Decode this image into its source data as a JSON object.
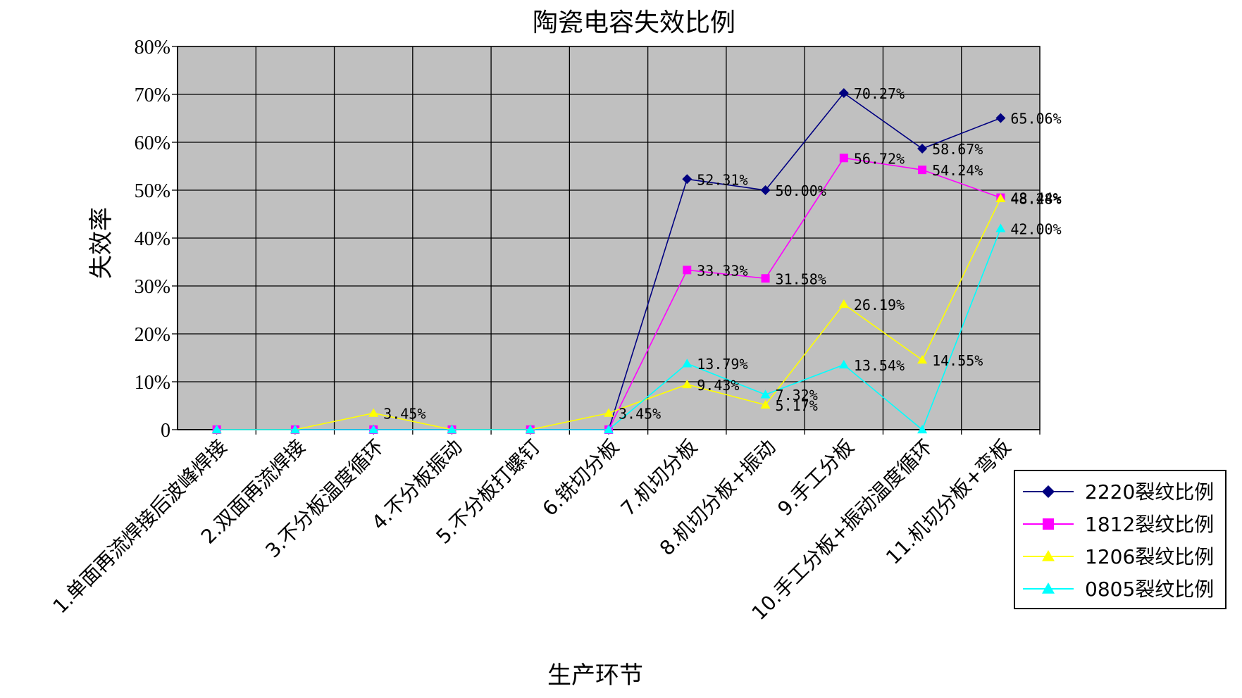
{
  "chart_data": {
    "type": "line",
    "title": "陶瓷电容失效比例",
    "xlabel": "生产环节",
    "ylabel": "失效率",
    "ylim": [
      0,
      80
    ],
    "yticks": [
      "0",
      "10%",
      "20%",
      "30%",
      "40%",
      "50%",
      "60%",
      "70%",
      "80%"
    ],
    "grid": true,
    "legend_position": "bottom-right",
    "plot_background": "#C0C0C0",
    "categories": [
      "1.单面再流焊接后波峰焊接",
      "2.双面再流焊接",
      "3.不分板温度循环",
      "4.不分板振动",
      "5.不分板打螺钉",
      "6.铣切分板",
      "7.机切分板",
      "8.机切分板+振动",
      "9.手工分板",
      "10.手工分板+振动温度循环",
      "11.机切分板+弯板"
    ],
    "series": [
      {
        "name": "2220裂纹比例",
        "color": "#000080",
        "marker": "diamond",
        "values": [
          0,
          0,
          0,
          0,
          0,
          0,
          52.31,
          50.0,
          70.27,
          58.67,
          65.06
        ],
        "labels": [
          "",
          "",
          "",
          "",
          "",
          "",
          "52.31%",
          "50.00%",
          "70.27%",
          "58.67%",
          "65.06%"
        ]
      },
      {
        "name": "1812裂纹比例",
        "color": "#FF00FF",
        "marker": "square",
        "values": [
          0,
          0,
          0,
          0,
          0,
          0,
          33.33,
          31.58,
          56.72,
          54.24,
          48.44
        ],
        "labels": [
          "",
          "",
          "",
          "",
          "",
          "",
          "33.33%",
          "31.58%",
          "56.72%",
          "54.24%",
          "48.44%"
        ]
      },
      {
        "name": "1206裂纹比例",
        "color": "#FFFF00",
        "marker": "triangle",
        "values": [
          0,
          0,
          3.45,
          0,
          0,
          3.45,
          9.43,
          5.17,
          26.19,
          14.55,
          48.28
        ],
        "labels": [
          "",
          "",
          "3.45%",
          "",
          "",
          "3.45%",
          "9.43%",
          "5.17%",
          "26.19%",
          "14.55%",
          "48.28%"
        ]
      },
      {
        "name": "0805裂纹比例",
        "color": "#00FFFF",
        "marker": "triangle",
        "values": [
          0,
          0,
          0,
          0,
          0,
          0,
          13.79,
          7.32,
          13.54,
          0,
          42.0
        ],
        "labels": [
          "",
          "",
          "",
          "",
          "",
          "",
          "13.79%",
          "7.32%",
          "13.54%",
          "",
          "42.00%"
        ]
      }
    ]
  }
}
